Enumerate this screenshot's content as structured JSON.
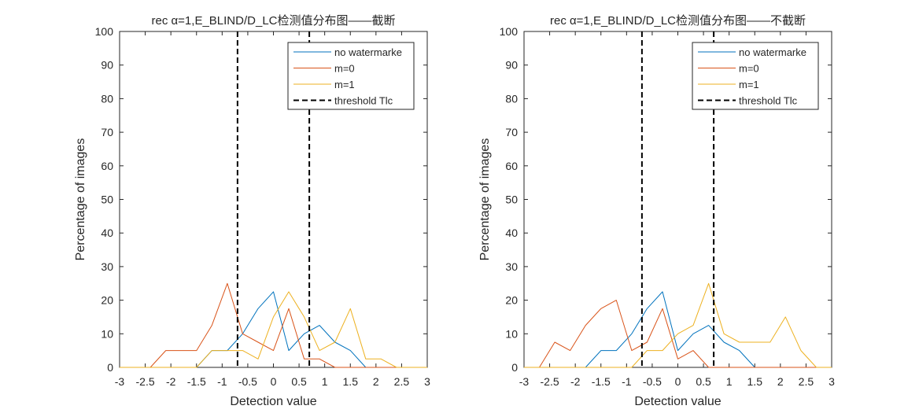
{
  "chart_data": [
    {
      "type": "line",
      "title": "rec α=1,E_BLIND/D_LC检测值分布图——截断",
      "xlabel": "Detection value",
      "ylabel": "Percentage of images",
      "xlim": [
        -3,
        3
      ],
      "ylim": [
        0,
        100
      ],
      "xticks": [
        -3,
        -2.5,
        -2,
        -1.5,
        -1,
        -0.5,
        0,
        0.5,
        1,
        1.5,
        2,
        2.5,
        3
      ],
      "xtick_labels": [
        "-3",
        "-2.5",
        "-2",
        "-1.5",
        "-1",
        "-0.5",
        "0",
        "0.5",
        "1",
        "1.5",
        "2",
        "2.5",
        "3"
      ],
      "yticks": [
        0,
        10,
        20,
        30,
        40,
        50,
        60,
        70,
        80,
        90,
        100
      ],
      "ytick_labels": [
        "0",
        "10",
        "20",
        "30",
        "40",
        "50",
        "60",
        "70",
        "80",
        "90",
        "100"
      ],
      "grid": false,
      "legend_position": "top-right",
      "x": [
        -3,
        -2.7,
        -2.4,
        -2.1,
        -1.8,
        -1.5,
        -1.2,
        -0.9,
        -0.6,
        -0.3,
        0,
        0.3,
        0.6,
        0.9,
        1.2,
        1.5,
        1.8,
        2.1,
        2.4,
        2.7,
        3
      ],
      "series": [
        {
          "name": "no watermarke",
          "color": "#0072BD",
          "values": [
            0,
            0,
            0,
            0,
            0,
            0,
            5,
            5,
            10,
            17.5,
            22.5,
            5,
            10,
            12.5,
            7.5,
            5,
            0,
            0,
            0,
            0,
            0
          ]
        },
        {
          "name": "m=0",
          "color": "#D95319",
          "values": [
            0,
            0,
            0,
            5,
            5,
            5,
            12.5,
            25,
            10,
            7.5,
            5,
            17.5,
            2.5,
            2.5,
            0,
            0,
            0,
            0,
            0,
            0,
            0
          ]
        },
        {
          "name": "m=1",
          "color": "#EDB120",
          "values": [
            0,
            0,
            0,
            0,
            0,
            0,
            5,
            5,
            5,
            2.5,
            15,
            22.5,
            15,
            5,
            7.5,
            17.5,
            2.5,
            2.5,
            0,
            0,
            0
          ]
        }
      ],
      "thresholds": {
        "name": "threshold Tlc",
        "color": "#000000",
        "values": [
          -0.7,
          0.7
        ]
      }
    },
    {
      "type": "line",
      "title": "rec α=1,E_BLIND/D_LC检测值分布图——不截断",
      "xlabel": "Detection value",
      "ylabel": "Percentage of images",
      "xlim": [
        -3,
        3
      ],
      "ylim": [
        0,
        100
      ],
      "xticks": [
        -3,
        -2.5,
        -2,
        -1.5,
        -1,
        -0.5,
        0,
        0.5,
        1,
        1.5,
        2,
        2.5,
        3
      ],
      "xtick_labels": [
        "-3",
        "-2.5",
        "-2",
        "-1.5",
        "-1",
        "-0.5",
        "0",
        "0.5",
        "1",
        "1.5",
        "2",
        "2.5",
        "3"
      ],
      "yticks": [
        0,
        10,
        20,
        30,
        40,
        50,
        60,
        70,
        80,
        90,
        100
      ],
      "ytick_labels": [
        "0",
        "10",
        "20",
        "30",
        "40",
        "50",
        "60",
        "70",
        "80",
        "90",
        "100"
      ],
      "grid": false,
      "legend_position": "top-right",
      "x": [
        -3,
        -2.7,
        -2.4,
        -2.1,
        -1.8,
        -1.5,
        -1.2,
        -0.9,
        -0.6,
        -0.3,
        0,
        0.3,
        0.6,
        0.9,
        1.2,
        1.5,
        1.8,
        2.1,
        2.4,
        2.7,
        3
      ],
      "series": [
        {
          "name": "no watermarke",
          "color": "#0072BD",
          "values": [
            0,
            0,
            0,
            0,
            0,
            5,
            5,
            10,
            17.5,
            22.5,
            5,
            10,
            12.5,
            7.5,
            5,
            0,
            0,
            0,
            0,
            0,
            0
          ]
        },
        {
          "name": "m=0",
          "color": "#D95319",
          "values": [
            0,
            0,
            7.5,
            5,
            12.5,
            17.5,
            20,
            5,
            7.5,
            17.5,
            2.5,
            5,
            0,
            0,
            0,
            0,
            0,
            0,
            0,
            0,
            0
          ]
        },
        {
          "name": "m=1",
          "color": "#EDB120",
          "values": [
            0,
            0,
            0,
            0,
            0,
            0,
            0,
            0,
            5,
            5,
            10,
            12.5,
            25,
            10,
            7.5,
            7.5,
            7.5,
            15,
            5,
            0,
            0
          ]
        }
      ],
      "thresholds": {
        "name": "threshold Tlc",
        "color": "#000000",
        "values": [
          -0.7,
          0.7
        ]
      }
    }
  ]
}
